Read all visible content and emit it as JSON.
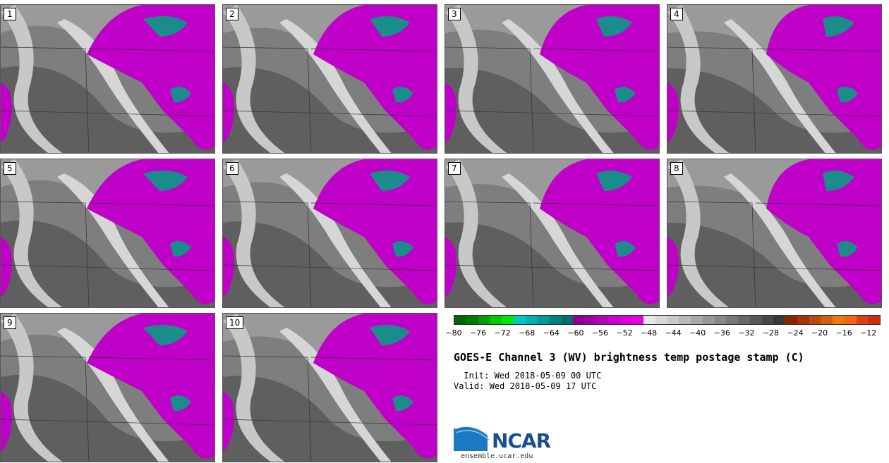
{
  "title": "GOES-E Channel 3 (WV) brightness temp postage stamp (C)",
  "init": " Init: Wed 2018-05-09 00 UTC",
  "valid": "Valid: Wed 2018-05-09 17 UTC",
  "logo": {
    "name": "NCAR",
    "url": "ensemble.ucar.edu"
  },
  "members": [
    "1",
    "2",
    "3",
    "4",
    "5",
    "6",
    "7",
    "8",
    "9",
    "10"
  ],
  "colorbar": {
    "ticks": [
      "−80",
      "−76",
      "−72",
      "−68",
      "−64",
      "−60",
      "−56",
      "−52",
      "−48",
      "−44",
      "−40",
      "−36",
      "−32",
      "−28",
      "−24",
      "−20",
      "−16",
      "−12"
    ],
    "tick_values": [
      -80,
      -76,
      -72,
      -68,
      -64,
      -60,
      -56,
      -52,
      -48,
      -44,
      -40,
      -36,
      -32,
      -28,
      -24,
      -20,
      -16,
      -12
    ],
    "range": [
      -80,
      -10
    ],
    "colors": [
      "#006400",
      "#007a00",
      "#00a000",
      "#00c800",
      "#00e600",
      "#00c8c8",
      "#00b0b0",
      "#009a9a",
      "#008080",
      "#006e6e",
      "#8b008b",
      "#a000a0",
      "#b400b4",
      "#c800c8",
      "#dc00dc",
      "#e600e6",
      "#e8e8e8",
      "#d8d8d8",
      "#c8c8c8",
      "#b8b8b8",
      "#a8a8a8",
      "#989898",
      "#888888",
      "#787878",
      "#686868",
      "#585858",
      "#484848",
      "#383838",
      "#8b2500",
      "#a0330a",
      "#b84a10",
      "#d06010",
      "#e87a10",
      "#f06418",
      "#e04010",
      "#c83010"
    ]
  }
}
